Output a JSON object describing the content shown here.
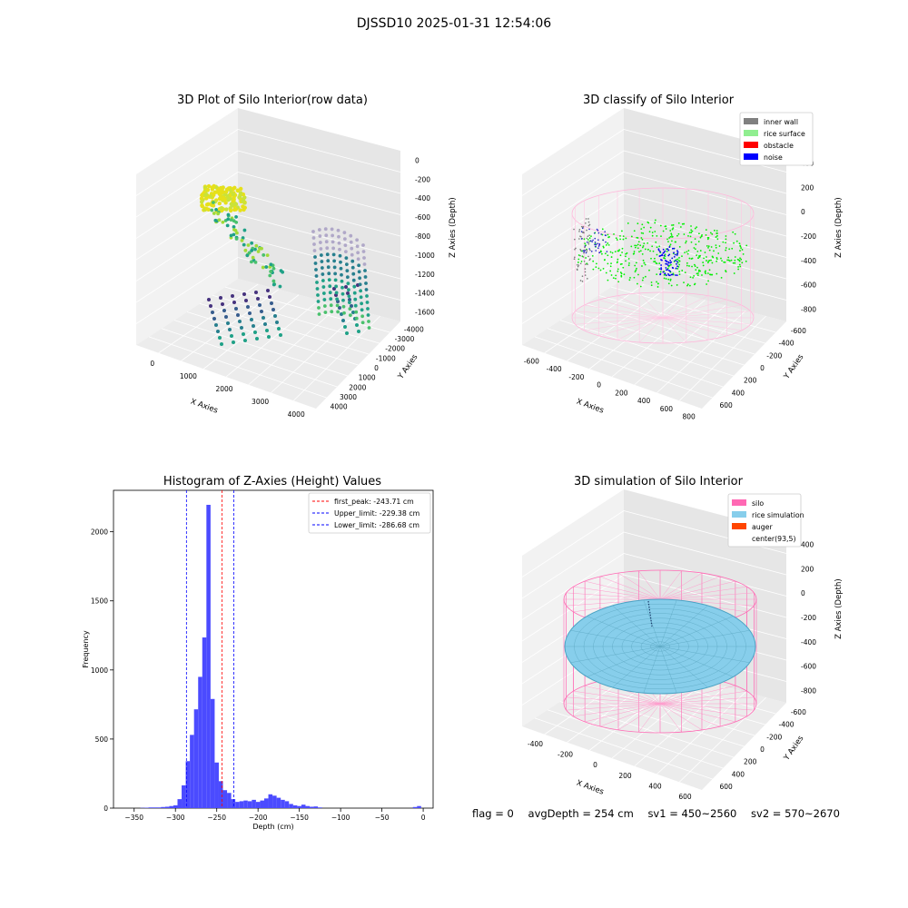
{
  "figure_title": "DJSSD10 2025-01-31 12:54:06",
  "footer": {
    "flag": "flag = 0",
    "avg_depth": "avgDepth = 254 cm",
    "sv1": "sv1 = 450~2560",
    "sv2": "sv2 = 570~2670"
  },
  "colors": {
    "inner_wall": "#808080",
    "rice_surface": "#90ee90",
    "obstacle": "#ff0000",
    "noise": "#0000ff",
    "silo": "#ff69b4",
    "rice_simulation": "#87ceeb",
    "auger": "#ff4500",
    "hist_bar": "#4b4bff"
  },
  "chart_data": [
    {
      "type": "scatter",
      "title": "3D Plot of Silo Interior(row data)",
      "xlabel": "X Axies",
      "ylabel": "Y Axies",
      "zlabel": "Z Axies (Depth)",
      "x_ticks": [
        "0",
        "1000",
        "2000",
        "3000",
        "4000"
      ],
      "y_ticks": [
        "-4000",
        "-3000",
        "-2000",
        "-1000",
        "0",
        "1000",
        "2000",
        "3000",
        "4000"
      ],
      "z_ticks": [
        "-1600",
        "-1400",
        "-1200",
        "-1000",
        "-800",
        "-600",
        "-400",
        "-200",
        "0"
      ],
      "colormap": "viridis"
    },
    {
      "type": "scatter",
      "title": "3D classify of Silo Interior",
      "xlabel": "X Axies",
      "ylabel": "Y Axies",
      "zlabel": "Z Axies (Depth)",
      "x_ticks": [
        "-600",
        "-400",
        "-200",
        "0",
        "200",
        "400",
        "600",
        "800"
      ],
      "y_ticks": [
        "-600",
        "-400",
        "-200",
        "0",
        "200",
        "400",
        "600"
      ],
      "z_ticks": [
        "-800",
        "-600",
        "-400",
        "-200",
        "0",
        "200",
        "400"
      ],
      "legend": [
        "inner wall",
        "rice surface",
        "obstacle",
        "noise"
      ],
      "legend_position": "top-right"
    },
    {
      "type": "bar",
      "title": "Histogram of Z-Axies (Height) Values",
      "xlabel": "Depth (cm)",
      "ylabel": "Frequency",
      "xlim": [
        -375,
        12
      ],
      "ylim": [
        0,
        2300
      ],
      "x_ticks": [
        -350,
        -300,
        -250,
        -200,
        -150,
        -100,
        -50,
        0
      ],
      "y_ticks": [
        0,
        500,
        1000,
        1500,
        2000
      ],
      "bin_width": 5,
      "bins": [
        {
          "x": -340,
          "value": 2
        },
        {
          "x": -335,
          "value": 3
        },
        {
          "x": -330,
          "value": 5
        },
        {
          "x": -325,
          "value": 5
        },
        {
          "x": -320,
          "value": 5
        },
        {
          "x": -315,
          "value": 8
        },
        {
          "x": -310,
          "value": 10
        },
        {
          "x": -305,
          "value": 15
        },
        {
          "x": -300,
          "value": 20
        },
        {
          "x": -295,
          "value": 65
        },
        {
          "x": -290,
          "value": 165
        },
        {
          "x": -285,
          "value": 340
        },
        {
          "x": -280,
          "value": 530
        },
        {
          "x": -275,
          "value": 715
        },
        {
          "x": -270,
          "value": 950
        },
        {
          "x": -265,
          "value": 1235
        },
        {
          "x": -260,
          "value": 2195
        },
        {
          "x": -255,
          "value": 790
        },
        {
          "x": -250,
          "value": 330
        },
        {
          "x": -245,
          "value": 195
        },
        {
          "x": -240,
          "value": 130
        },
        {
          "x": -235,
          "value": 110
        },
        {
          "x": -230,
          "value": 65
        },
        {
          "x": -225,
          "value": 45
        },
        {
          "x": -220,
          "value": 50
        },
        {
          "x": -215,
          "value": 55
        },
        {
          "x": -210,
          "value": 50
        },
        {
          "x": -205,
          "value": 60
        },
        {
          "x": -200,
          "value": 45
        },
        {
          "x": -195,
          "value": 55
        },
        {
          "x": -190,
          "value": 70
        },
        {
          "x": -185,
          "value": 100
        },
        {
          "x": -180,
          "value": 90
        },
        {
          "x": -175,
          "value": 75
        },
        {
          "x": -170,
          "value": 60
        },
        {
          "x": -165,
          "value": 50
        },
        {
          "x": -160,
          "value": 30
        },
        {
          "x": -155,
          "value": 20
        },
        {
          "x": -150,
          "value": 15
        },
        {
          "x": -145,
          "value": 25
        },
        {
          "x": -140,
          "value": 15
        },
        {
          "x": -135,
          "value": 10
        },
        {
          "x": -130,
          "value": 12
        },
        {
          "x": -125,
          "value": 5
        },
        {
          "x": -10,
          "value": 8
        },
        {
          "x": -5,
          "value": 15
        }
      ],
      "lines": [
        {
          "label": "first_peak: -243.71 cm",
          "x": -243.71,
          "color": "#ff0000"
        },
        {
          "label": "Upper_limit: -229.38 cm",
          "x": -229.38,
          "color": "#0000ff"
        },
        {
          "label": "Lower_limit: -286.68 cm",
          "x": -286.68,
          "color": "#0000ff"
        }
      ],
      "legend_position": "top-right"
    },
    {
      "type": "surface",
      "title": "3D simulation of Silo Interior",
      "xlabel": "X Axies",
      "ylabel": "Y Axies",
      "zlabel": "Z Axies (Depth)",
      "x_ticks": [
        "-400",
        "-200",
        "0",
        "200",
        "400",
        "600"
      ],
      "y_ticks": [
        "-600",
        "-400",
        "-200",
        "0",
        "200",
        "400",
        "600"
      ],
      "z_ticks": [
        "-800",
        "-600",
        "-400",
        "-200",
        "0",
        "200",
        "400"
      ],
      "legend": [
        "silo",
        "rice simulation",
        "auger",
        "center(93,5)"
      ],
      "legend_position": "top-right"
    }
  ]
}
